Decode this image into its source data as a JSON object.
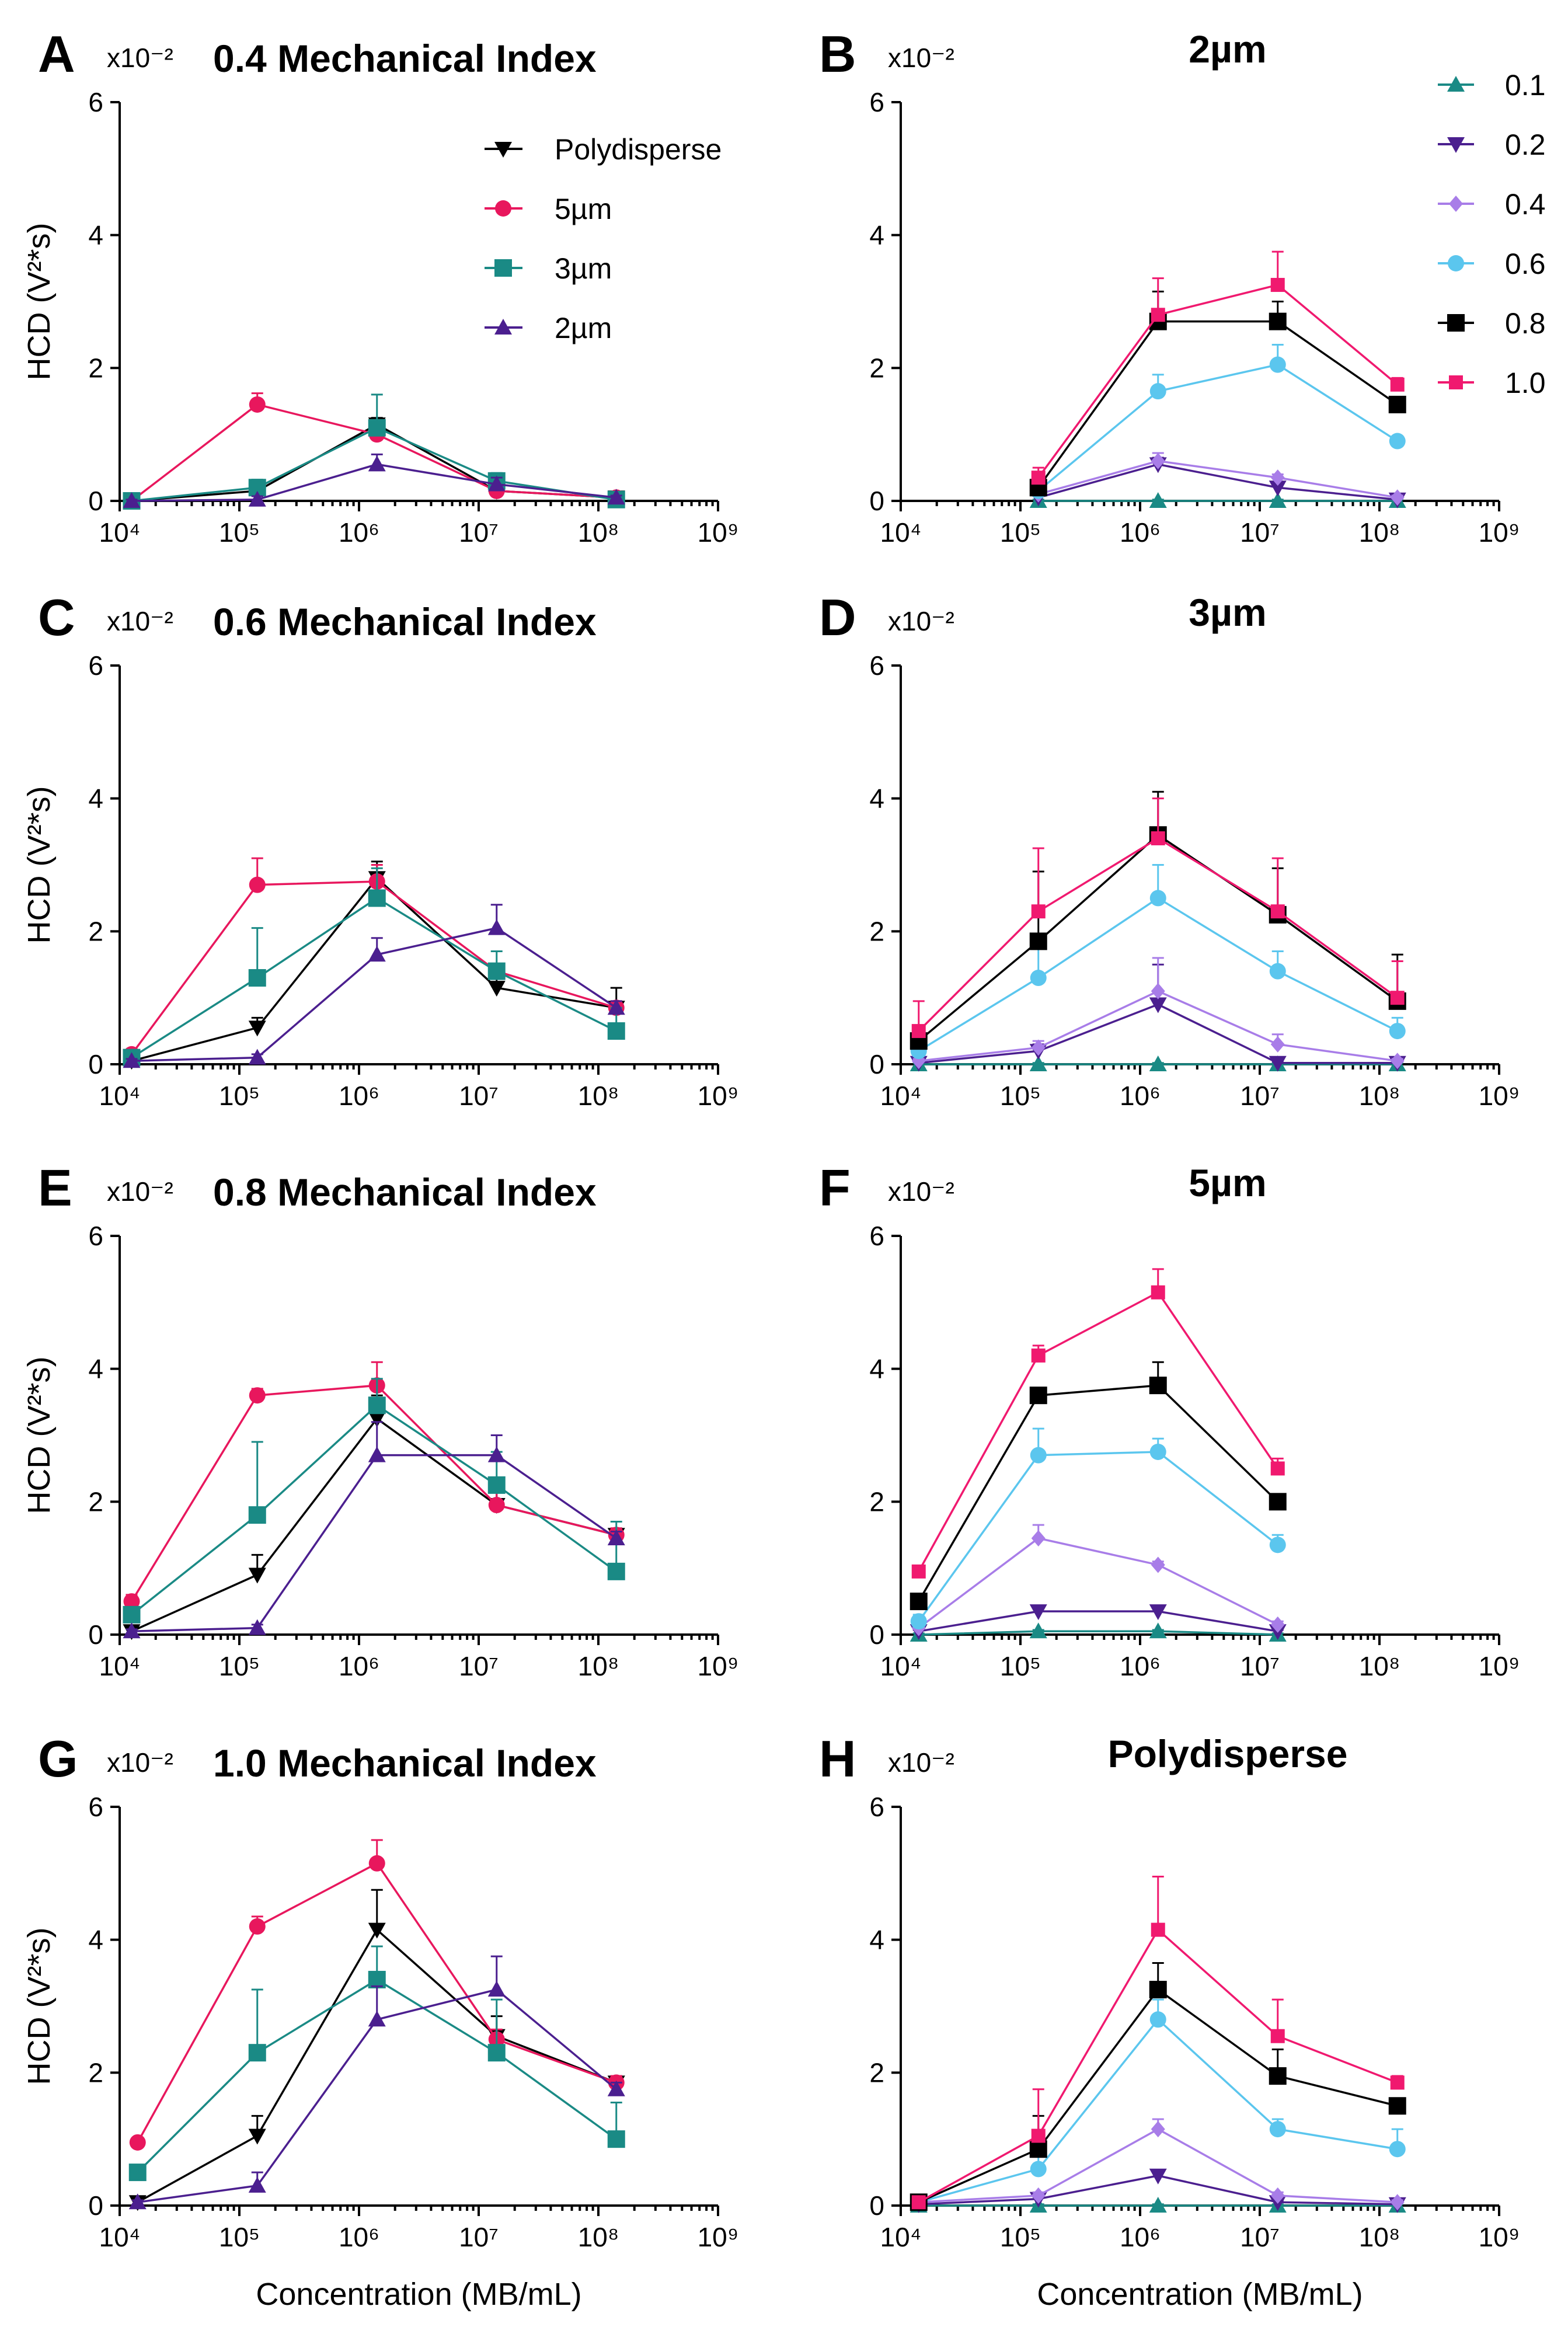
{
  "figure": {
    "xlabel": "Concentration (MB/mL)",
    "ylabel": "HCD (V²*s)",
    "scale_label": "x10⁻²",
    "y_ticks": [
      "0",
      "2",
      "4",
      "6"
    ],
    "x_ticks": [
      "10⁴",
      "10⁵",
      "10⁶",
      "10⁷",
      "10⁸",
      "10⁹"
    ]
  },
  "colors": {
    "Polydisperse": "#000000",
    "5µm": "#e8175d",
    "3µm": "#1a8a85",
    "2µm": "#4b1f8f",
    "0.1": "#1a8a85",
    "0.2": "#4b1f8f",
    "0.4": "#a87de8",
    "0.6": "#5bc6ee",
    "0.8": "#000000",
    "1.0": "#f0196f"
  },
  "legends": {
    "by_size": [
      "Polydisperse",
      "5µm",
      "3µm",
      "2µm"
    ],
    "by_mi": [
      "0.1",
      "0.2",
      "0.4",
      "0.6",
      "0.8",
      "1.0"
    ]
  },
  "chart_data": [
    {
      "panel": "A",
      "type": "line",
      "title": "0.4 Mechanical Index",
      "group": "mi",
      "x": [
        4.1,
        5.15,
        6.15,
        7.15,
        8.15
      ],
      "xscale": "log10",
      "xlim": [
        4,
        9
      ],
      "ylim": [
        0,
        6
      ],
      "series": [
        {
          "name": "Polydisperse",
          "values": [
            0,
            0.15,
            1.15,
            0.15,
            0.05
          ],
          "errors": [
            0.03,
            0.05,
            0.1,
            0.05,
            0.03
          ]
        },
        {
          "name": "5µm",
          "values": [
            0,
            1.45,
            1.0,
            0.15,
            0.05
          ],
          "errors": [
            0.03,
            0.17,
            0.1,
            0.05,
            0.03
          ]
        },
        {
          "name": "3µm",
          "values": [
            0,
            0.2,
            1.1,
            0.3,
            0.02
          ],
          "errors": [
            0.03,
            0.12,
            0.5,
            0.12,
            0.03
          ]
        },
        {
          "name": "2µm",
          "values": [
            0,
            0.02,
            0.55,
            0.25,
            0.05
          ],
          "errors": [
            0.02,
            0.05,
            0.15,
            0.1,
            0.03
          ]
        }
      ]
    },
    {
      "panel": "B",
      "type": "line",
      "title": "2µm",
      "group": "size",
      "x": [
        5.15,
        6.15,
        7.15,
        8.15
      ],
      "xscale": "log10",
      "xlim": [
        4,
        9
      ],
      "ylim": [
        0,
        6
      ],
      "series": [
        {
          "name": "0.1",
          "values": [
            0,
            0,
            0,
            0
          ],
          "errors": [
            0.02,
            0.02,
            0.02,
            0.02
          ]
        },
        {
          "name": "0.2",
          "values": [
            0.05,
            0.55,
            0.2,
            0.02
          ],
          "errors": [
            0.03,
            0.1,
            0.05,
            0.02
          ]
        },
        {
          "name": "0.4",
          "values": [
            0.1,
            0.6,
            0.35,
            0.05
          ],
          "errors": [
            0.05,
            0.12,
            0.05,
            0.03
          ]
        },
        {
          "name": "0.6",
          "values": [
            0.15,
            1.65,
            2.05,
            0.9
          ],
          "errors": [
            0.1,
            0.25,
            0.3,
            0.05
          ]
        },
        {
          "name": "0.8",
          "values": [
            0.2,
            2.7,
            2.7,
            1.45
          ],
          "errors": [
            0.15,
            0.45,
            0.3,
            0.1
          ]
        },
        {
          "name": "1.0",
          "values": [
            0.35,
            2.8,
            3.25,
            1.75
          ],
          "errors": [
            0.15,
            0.55,
            0.5,
            0.1
          ]
        }
      ]
    },
    {
      "panel": "C",
      "type": "line",
      "title": "0.6 Mechanical Index",
      "group": "mi",
      "x": [
        4.1,
        5.15,
        6.15,
        7.15,
        8.15
      ],
      "xscale": "log10",
      "xlim": [
        4,
        9
      ],
      "ylim": [
        0,
        6
      ],
      "series": [
        {
          "name": "Polydisperse",
          "values": [
            0.05,
            0.55,
            2.8,
            1.15,
            0.85
          ],
          "errors": [
            0.03,
            0.15,
            0.25,
            0.15,
            0.3
          ]
        },
        {
          "name": "5µm",
          "values": [
            0.15,
            2.7,
            2.75,
            1.4,
            0.85
          ],
          "errors": [
            0.05,
            0.4,
            0.25,
            0.1,
            0.1
          ]
        },
        {
          "name": "3µm",
          "values": [
            0.1,
            1.3,
            2.5,
            1.4,
            0.5
          ],
          "errors": [
            0.05,
            0.75,
            0.45,
            0.3,
            0.35
          ]
        },
        {
          "name": "2µm",
          "values": [
            0.05,
            0.1,
            1.65,
            2.05,
            0.85
          ],
          "errors": [
            0.03,
            0.05,
            0.25,
            0.35,
            0.1
          ]
        }
      ]
    },
    {
      "panel": "D",
      "type": "line",
      "title": "3µm",
      "group": "size",
      "x": [
        4.15,
        5.15,
        6.15,
        7.15,
        8.15
      ],
      "xscale": "log10",
      "xlim": [
        4,
        9
      ],
      "ylim": [
        0,
        6
      ],
      "series": [
        {
          "name": "0.1",
          "values": [
            0,
            0,
            0,
            0,
            0
          ],
          "errors": [
            0.02,
            0.02,
            0.02,
            0.02,
            0.02
          ]
        },
        {
          "name": "0.2",
          "values": [
            0.02,
            0.2,
            0.9,
            0.02,
            0.02
          ],
          "errors": [
            0.02,
            0.1,
            0.6,
            0.02,
            0.02
          ]
        },
        {
          "name": "0.4",
          "values": [
            0.05,
            0.25,
            1.1,
            0.3,
            0.05
          ],
          "errors": [
            0.03,
            0.1,
            0.5,
            0.15,
            0.03
          ]
        },
        {
          "name": "0.6",
          "values": [
            0.2,
            1.3,
            2.5,
            1.4,
            0.5
          ],
          "errors": [
            0.1,
            0.6,
            0.5,
            0.3,
            0.2
          ]
        },
        {
          "name": "0.8",
          "values": [
            0.35,
            1.85,
            3.45,
            2.25,
            0.95
          ],
          "errors": [
            0.2,
            1.05,
            0.65,
            0.7,
            0.7
          ]
        },
        {
          "name": "1.0",
          "values": [
            0.5,
            2.3,
            3.4,
            2.3,
            1.0
          ],
          "errors": [
            0.45,
            0.95,
            0.6,
            0.8,
            0.55
          ]
        }
      ]
    },
    {
      "panel": "E",
      "type": "line",
      "title": "0.8 Mechanical Index",
      "group": "mi",
      "x": [
        4.1,
        5.15,
        6.15,
        7.15,
        8.15
      ],
      "xscale": "log10",
      "xlim": [
        4,
        9
      ],
      "ylim": [
        0,
        6
      ],
      "series": [
        {
          "name": "Polydisperse",
          "values": [
            0.05,
            0.9,
            3.25,
            1.95,
            1.5
          ],
          "errors": [
            0.03,
            0.3,
            0.35,
            0.4,
            0.1
          ]
        },
        {
          "name": "5µm",
          "values": [
            0.5,
            3.6,
            3.75,
            1.95,
            1.5
          ],
          "errors": [
            0.1,
            0.1,
            0.35,
            0.3,
            0.1
          ]
        },
        {
          "name": "3µm",
          "values": [
            0.3,
            1.8,
            3.45,
            2.25,
            0.95
          ],
          "errors": [
            0.1,
            1.1,
            0.4,
            0.5,
            0.75
          ]
        },
        {
          "name": "2µm",
          "values": [
            0.05,
            0.1,
            2.7,
            2.7,
            1.45
          ],
          "errors": [
            0.03,
            0.05,
            0.5,
            0.3,
            0.1
          ]
        }
      ]
    },
    {
      "panel": "F",
      "type": "line",
      "title": "5µm",
      "group": "size",
      "x": [
        4.15,
        5.15,
        6.15,
        7.15
      ],
      "xscale": "log10",
      "xlim": [
        4,
        9
      ],
      "ylim": [
        0,
        6
      ],
      "series": [
        {
          "name": "0.1",
          "values": [
            0,
            0.05,
            0.05,
            0
          ],
          "errors": [
            0.02,
            0.02,
            0.02,
            0.02
          ]
        },
        {
          "name": "0.2",
          "values": [
            0.05,
            0.35,
            0.35,
            0.05
          ],
          "errors": [
            0.02,
            0.05,
            0.05,
            0.02
          ]
        },
        {
          "name": "0.4",
          "values": [
            0.1,
            1.45,
            1.05,
            0.15
          ],
          "errors": [
            0.05,
            0.2,
            0.05,
            0.05
          ]
        },
        {
          "name": "0.6",
          "values": [
            0.2,
            2.7,
            2.75,
            1.35
          ],
          "errors": [
            0.1,
            0.4,
            0.2,
            0.15
          ]
        },
        {
          "name": "0.8",
          "values": [
            0.5,
            3.6,
            3.75,
            2.0
          ],
          "errors": [
            0.1,
            0.1,
            0.35,
            0.05
          ]
        },
        {
          "name": "1.0",
          "values": [
            0.95,
            4.2,
            5.15,
            2.5
          ],
          "errors": [
            0.05,
            0.15,
            0.35,
            0.15
          ]
        }
      ]
    },
    {
      "panel": "G",
      "type": "line",
      "title": "1.0 Mechanical Index",
      "group": "mi",
      "x": [
        4.15,
        5.15,
        6.15,
        7.15,
        8.15
      ],
      "xscale": "log10",
      "xlim": [
        4,
        9
      ],
      "ylim": [
        0,
        6
      ],
      "series": [
        {
          "name": "Polydisperse",
          "values": [
            0.05,
            1.05,
            4.15,
            2.55,
            1.85
          ],
          "errors": [
            0.03,
            0.3,
            0.6,
            0.3,
            0.1
          ]
        },
        {
          "name": "5µm",
          "values": [
            0.95,
            4.2,
            5.15,
            2.5,
            1.85
          ],
          "errors": [
            0.05,
            0.15,
            0.35,
            0.15,
            0.1
          ]
        },
        {
          "name": "3µm",
          "values": [
            0.5,
            2.3,
            3.4,
            2.3,
            1.0
          ],
          "errors": [
            0.1,
            0.95,
            0.5,
            0.8,
            0.55
          ]
        },
        {
          "name": "2µm",
          "values": [
            0.05,
            0.3,
            2.8,
            3.25,
            1.75
          ],
          "errors": [
            0.03,
            0.2,
            0.5,
            0.5,
            0.1
          ]
        }
      ]
    },
    {
      "panel": "H",
      "type": "line",
      "title": "Polydisperse",
      "group": "size",
      "x": [
        4.15,
        5.15,
        6.15,
        7.15,
        8.15
      ],
      "xscale": "log10",
      "xlim": [
        4,
        9
      ],
      "ylim": [
        0,
        6
      ],
      "series": [
        {
          "name": "0.1",
          "values": [
            0,
            0,
            0,
            0,
            0
          ],
          "errors": [
            0.02,
            0.02,
            0.02,
            0.02,
            0.02
          ]
        },
        {
          "name": "0.2",
          "values": [
            0.02,
            0.1,
            0.45,
            0.05,
            0.02
          ],
          "errors": [
            0.02,
            0.05,
            0.05,
            0.02,
            0.02
          ]
        },
        {
          "name": "0.4",
          "values": [
            0.05,
            0.15,
            1.15,
            0.15,
            0.05
          ],
          "errors": [
            0.03,
            0.05,
            0.15,
            0.05,
            0.03
          ]
        },
        {
          "name": "0.6",
          "values": [
            0.05,
            0.55,
            2.8,
            1.15,
            0.85
          ],
          "errors": [
            0.03,
            0.3,
            0.3,
            0.15,
            0.3
          ]
        },
        {
          "name": "0.8",
          "values": [
            0.05,
            0.85,
            3.25,
            1.95,
            1.5
          ],
          "errors": [
            0.03,
            0.5,
            0.4,
            0.4,
            0.1
          ]
        },
        {
          "name": "1.0",
          "values": [
            0.05,
            1.05,
            4.15,
            2.55,
            1.85
          ],
          "errors": [
            0.03,
            0.7,
            0.8,
            0.55,
            0.1
          ]
        }
      ]
    }
  ]
}
